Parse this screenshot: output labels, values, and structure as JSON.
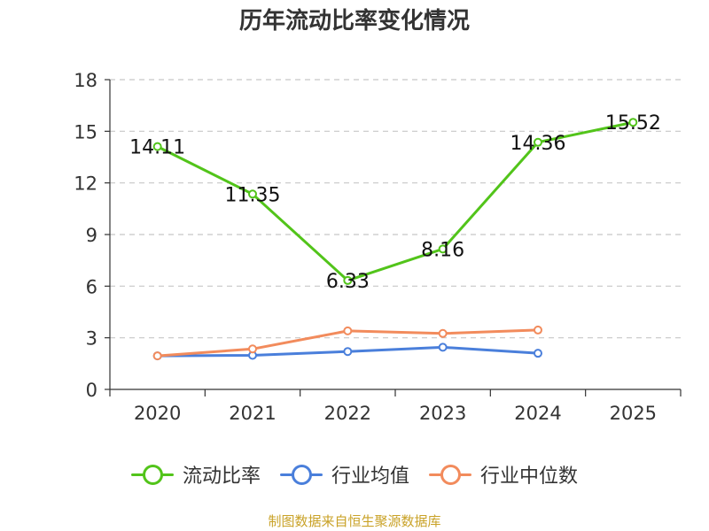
{
  "chart_data": {
    "type": "line",
    "title": "历年流动比率变化情况",
    "categories": [
      "2020",
      "2021",
      "2022",
      "2023",
      "2024",
      "2025"
    ],
    "ylim": [
      0,
      18
    ],
    "yticks": [
      0,
      3,
      6,
      9,
      12,
      15,
      18
    ],
    "grid": true,
    "legend_position": "bottom",
    "series": [
      {
        "name": "流动比率",
        "color": "#52c41a",
        "values": [
          14.11,
          11.35,
          6.33,
          8.16,
          14.36,
          15.52
        ],
        "labels": [
          "14.11",
          "11.35",
          "6.33",
          "8.16",
          "14.36",
          "15.52"
        ]
      },
      {
        "name": "行业均值",
        "color": "#4a7fdb",
        "values": [
          1.95,
          1.98,
          2.2,
          2.45,
          2.1,
          null
        ]
      },
      {
        "name": "行业中位数",
        "color": "#f28b5c",
        "values": [
          1.95,
          2.35,
          3.4,
          3.25,
          3.45,
          null
        ]
      }
    ]
  },
  "source": "制图数据来自恒生聚源数据库"
}
